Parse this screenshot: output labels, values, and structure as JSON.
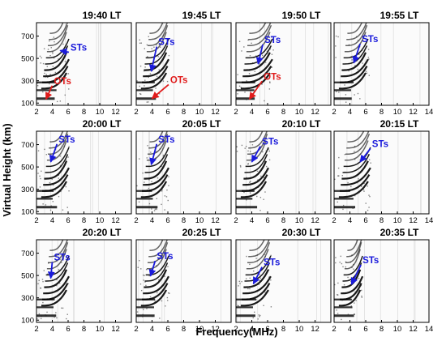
{
  "figure": {
    "y_axis_label": "Virtual  Height (km)",
    "x_axis_label": "Frequency(MHz)"
  },
  "chart_data": {
    "type": "grid-of-ionograms",
    "rows": 3,
    "cols": 4,
    "xlim": [
      2,
      14
    ],
    "ylim": [
      80,
      820
    ],
    "x_ticks": [
      2,
      4,
      6,
      8,
      10,
      12,
      14
    ],
    "y_ticks": [
      100,
      300,
      500,
      700
    ],
    "colors": {
      "st_annotation": "#1a1adb",
      "ot_annotation": "#e01b1b",
      "trace": "#000000"
    },
    "panels": [
      {
        "title": "19:40 LT",
        "foF2_mhz": 6.0,
        "annotations": [
          {
            "label": "STs",
            "color": "#1a1adb",
            "text_x": 6.3,
            "text_y": 570,
            "arrow_to_x": 5.0,
            "arrow_to_y": 570
          },
          {
            "label": "OTs",
            "color": "#e01b1b",
            "text_x": 4.2,
            "text_y": 270,
            "arrow_to_x": 3.2,
            "arrow_to_y": 135
          }
        ]
      },
      {
        "title": "19:45 LT",
        "foF2_mhz": 6.0,
        "annotations": [
          {
            "label": "STs",
            "color": "#1a1adb",
            "text_x": 4.8,
            "text_y": 620,
            "arrow_to_x": 3.9,
            "arrow_to_y": 385
          },
          {
            "label": "OTs",
            "color": "#e01b1b",
            "text_x": 6.3,
            "text_y": 280,
            "arrow_to_x": 4.0,
            "arrow_to_y": 140
          }
        ]
      },
      {
        "title": "19:50 LT",
        "foF2_mhz": 6.5,
        "annotations": [
          {
            "label": "STs",
            "color": "#1a1adb",
            "text_x": 5.6,
            "text_y": 640,
            "arrow_to_x": 4.8,
            "arrow_to_y": 450
          },
          {
            "label": "OTs",
            "color": "#e01b1b",
            "text_x": 5.5,
            "text_y": 310,
            "arrow_to_x": 3.7,
            "arrow_to_y": 135
          }
        ]
      },
      {
        "title": "19:55 LT",
        "foF2_mhz": 6.2,
        "annotations": [
          {
            "label": "STs",
            "color": "#1a1adb",
            "text_x": 5.5,
            "text_y": 645,
            "arrow_to_x": 4.5,
            "arrow_to_y": 460
          }
        ]
      },
      {
        "title": "20:00 LT",
        "foF2_mhz": 6.0,
        "annotations": [
          {
            "label": "STs",
            "color": "#1a1adb",
            "text_x": 4.8,
            "text_y": 720,
            "arrow_to_x": 3.8,
            "arrow_to_y": 545
          }
        ]
      },
      {
        "title": "20:05 LT",
        "foF2_mhz": 6.0,
        "annotations": [
          {
            "label": "STs",
            "color": "#1a1adb",
            "text_x": 4.8,
            "text_y": 720,
            "arrow_to_x": 3.9,
            "arrow_to_y": 520
          }
        ]
      },
      {
        "title": "20:10 LT",
        "foF2_mhz": 6.0,
        "annotations": [
          {
            "label": "STs",
            "color": "#1a1adb",
            "text_x": 5.3,
            "text_y": 700,
            "arrow_to_x": 4.0,
            "arrow_to_y": 545
          }
        ]
      },
      {
        "title": "20:15 LT",
        "foF2_mhz": 6.5,
        "annotations": [
          {
            "label": "STs",
            "color": "#1a1adb",
            "text_x": 6.8,
            "text_y": 680,
            "arrow_to_x": 5.3,
            "arrow_to_y": 545
          }
        ]
      },
      {
        "title": "20:20 LT",
        "foF2_mhz": 6.0,
        "annotations": [
          {
            "label": "STs",
            "color": "#1a1adb",
            "text_x": 4.2,
            "text_y": 635,
            "arrow_to_x": 3.8,
            "arrow_to_y": 475
          }
        ]
      },
      {
        "title": "20:25 LT",
        "foF2_mhz": 6.0,
        "annotations": [
          {
            "label": "STs",
            "color": "#1a1adb",
            "text_x": 4.6,
            "text_y": 645,
            "arrow_to_x": 3.8,
            "arrow_to_y": 495
          }
        ]
      },
      {
        "title": "20:30 LT",
        "foF2_mhz": 6.3,
        "annotations": [
          {
            "label": "STs",
            "color": "#1a1adb",
            "text_x": 5.5,
            "text_y": 590,
            "arrow_to_x": 4.2,
            "arrow_to_y": 425
          }
        ]
      },
      {
        "title": "20:35 LT",
        "foF2_mhz": 5.5,
        "annotations": [
          {
            "label": "STs",
            "color": "#1a1adb",
            "text_x": 5.6,
            "text_y": 610,
            "arrow_to_x": 4.2,
            "arrow_to_y": 420
          }
        ]
      }
    ]
  }
}
